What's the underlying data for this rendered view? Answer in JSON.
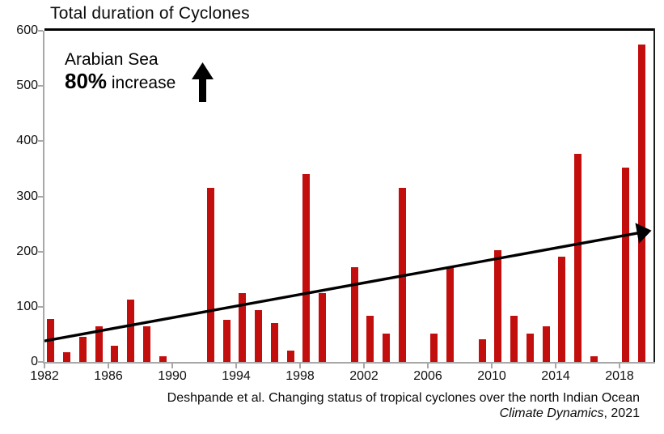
{
  "title": "Total duration of Cyclones",
  "annotation": {
    "region": "Arabian Sea",
    "stat": "80%",
    "stat_suffix": " increase"
  },
  "citation": {
    "line1": "Deshpande et al. Changing status of tropical cyclones over the north Indian Ocean",
    "journal": "Climate Dynamics",
    "year_suffix": ", 2021"
  },
  "colors": {
    "bar": "#c30e0e",
    "axis": "#a8a8a8",
    "trend": "#000000",
    "text": "#0b0b0b"
  },
  "chart_data": {
    "type": "bar",
    "title": "Total duration of Cyclones",
    "xlabel": "",
    "ylabel": "",
    "xlim": [
      1982,
      2020.1
    ],
    "ylim": [
      0,
      600
    ],
    "grid": false,
    "legend": null,
    "yticks": [
      0,
      100,
      200,
      300,
      400,
      500,
      600
    ],
    "xticks": [
      1982,
      1986,
      1990,
      1994,
      1998,
      2002,
      2006,
      2010,
      2014,
      2018
    ],
    "years": [
      1982,
      1983,
      1984,
      1985,
      1986,
      1987,
      1988,
      1989,
      1990,
      1991,
      1992,
      1993,
      1994,
      1995,
      1996,
      1997,
      1998,
      1999,
      2000,
      2001,
      2002,
      2003,
      2004,
      2005,
      2006,
      2007,
      2008,
      2009,
      2010,
      2011,
      2012,
      2013,
      2014,
      2015,
      2016,
      2017,
      2018,
      2019
    ],
    "values": [
      78,
      17,
      45,
      65,
      29,
      113,
      64,
      10,
      0,
      0,
      316,
      77,
      124,
      94,
      71,
      21,
      341,
      124,
      0,
      171,
      83,
      52,
      316,
      0,
      52,
      171,
      0,
      41,
      203,
      83,
      52,
      65,
      191,
      377,
      10,
      0,
      352,
      575
    ],
    "trend_line": {
      "x1": 1982,
      "y1": 38,
      "x2": 2020,
      "y2": 238
    },
    "annotation_text": "Arabian Sea 80% increase"
  }
}
